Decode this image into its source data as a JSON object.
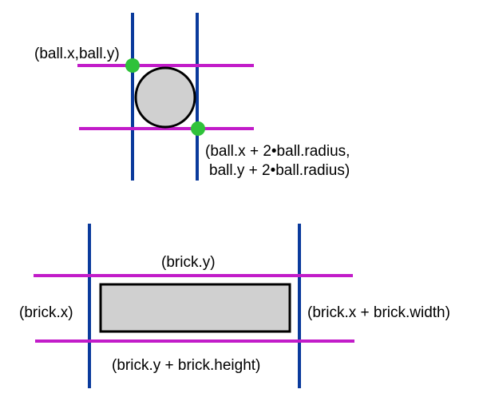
{
  "colors": {
    "background": "#ffffff",
    "vertical_lines": "#0a3a9c",
    "horizontal_lines": "#c21cc9",
    "corner_points": "#2fc23a",
    "shape_fill": "#d0d0d0",
    "shape_stroke": "#000000"
  },
  "ball_diagram": {
    "top_left_label": "(ball.x,ball.y)",
    "bottom_right_label_line1": "(ball.x + 2•ball.radius,",
    "bottom_right_label_line2": "ball.y + 2•ball.radius)"
  },
  "brick_diagram": {
    "top_label": "(brick.y)",
    "left_label": "(brick.x)",
    "right_label": "(brick.x + brick.width)",
    "bottom_label": "(brick.y + brick.height)"
  }
}
